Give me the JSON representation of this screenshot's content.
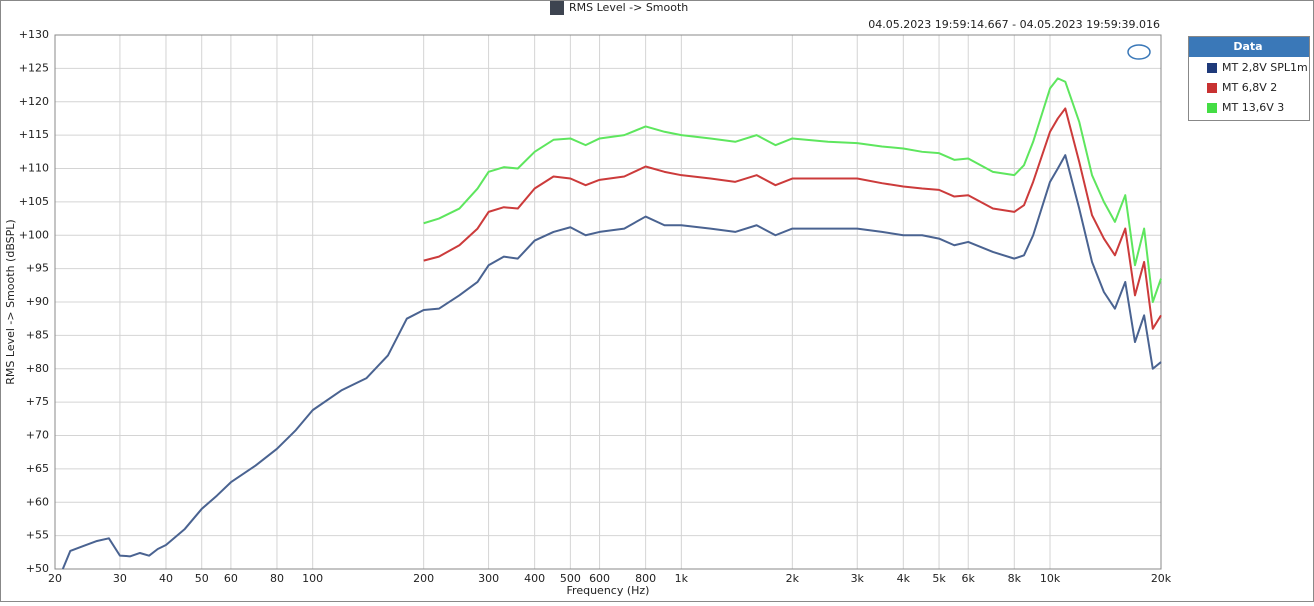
{
  "chart_data": {
    "type": "line",
    "title": "RMS Level -> Smooth",
    "subtitle": "04.05.2023 19:59:14.667 - 04.05.2023 19:59:39.016",
    "x_label": "Frequency (Hz)",
    "y_label": "RMS Level -> Smooth (dBSPL)",
    "legend_title": "Data",
    "legend_position": "outside-right",
    "x_scale": "log",
    "grid": true,
    "xlim": [
      20,
      20000
    ],
    "ylim": [
      50,
      130
    ],
    "xticks": [
      20,
      30,
      40,
      50,
      60,
      80,
      100,
      200,
      300,
      400,
      500,
      600,
      800,
      {
        "value": 1000,
        "label": "1k"
      },
      {
        "value": 2000,
        "label": "2k"
      },
      {
        "value": 3000,
        "label": "3k"
      },
      {
        "value": 4000,
        "label": "4k"
      },
      {
        "value": 5000,
        "label": "5k"
      },
      {
        "value": 6000,
        "label": "6k"
      },
      {
        "value": 8000,
        "label": "8k"
      },
      {
        "value": 10000,
        "label": "10k"
      },
      {
        "value": 20000,
        "label": "20k"
      }
    ],
    "yticks": [
      {
        "value": 50,
        "label": "+50"
      },
      {
        "value": 55,
        "label": "+55"
      },
      {
        "value": 60,
        "label": "+60"
      },
      {
        "value": 65,
        "label": "+65"
      },
      {
        "value": 70,
        "label": "+70"
      },
      {
        "value": 75,
        "label": "+75"
      },
      {
        "value": 80,
        "label": "+80"
      },
      {
        "value": 85,
        "label": "+85"
      },
      {
        "value": 90,
        "label": "+90"
      },
      {
        "value": 95,
        "label": "+95"
      },
      {
        "value": 100,
        "label": "+100"
      },
      {
        "value": 105,
        "label": "+105"
      },
      {
        "value": 110,
        "label": "+110"
      },
      {
        "value": 115,
        "label": "+115"
      },
      {
        "value": 120,
        "label": "+120"
      },
      {
        "value": 125,
        "label": "+125"
      },
      {
        "value": 130,
        "label": "+130"
      }
    ],
    "x": [
      21,
      22,
      24,
      26,
      28,
      30,
      32,
      34,
      36,
      38,
      40,
      45,
      50,
      55,
      60,
      70,
      80,
      90,
      100,
      120,
      140,
      160,
      180,
      200,
      220,
      250,
      280,
      300,
      330,
      360,
      400,
      450,
      500,
      550,
      600,
      700,
      800,
      900,
      1000,
      1200,
      1400,
      1600,
      1800,
      2000,
      2500,
      3000,
      3500,
      4000,
      4500,
      5000,
      5500,
      6000,
      7000,
      8000,
      8500,
      9000,
      10000,
      10500,
      11000,
      12000,
      13000,
      14000,
      15000,
      16000,
      17000,
      18000,
      19000,
      20000
    ],
    "series": [
      {
        "name": "MT 2,8V SPL1m",
        "color": "#4a6391",
        "legend_color": "#1f3a7a",
        "values": [
          50,
          52.7,
          53.5,
          54.2,
          54.6,
          52,
          51.9,
          52.4,
          52,
          53,
          53.6,
          56,
          59,
          61,
          63,
          65.5,
          68,
          70.8,
          73.8,
          76.8,
          78.6,
          82,
          87.5,
          88.8,
          89,
          91,
          93,
          95.5,
          96.8,
          96.5,
          99.2,
          100.5,
          101.2,
          100,
          100.5,
          101,
          102.8,
          101.5,
          101.5,
          101,
          100.5,
          101.5,
          100,
          101,
          101,
          101,
          100.5,
          100,
          100,
          99.5,
          98.5,
          99,
          97.5,
          96.5,
          97,
          100,
          108,
          110,
          112,
          104,
          96,
          91.5,
          89,
          93,
          84,
          88,
          80,
          81
        ]
      },
      {
        "name": "MT 6,8V 2",
        "color": "#cc3b3b",
        "legend_color": "#c83232",
        "values": [
          null,
          null,
          null,
          null,
          null,
          null,
          null,
          null,
          null,
          null,
          null,
          null,
          null,
          null,
          null,
          null,
          null,
          null,
          null,
          null,
          null,
          null,
          null,
          96.2,
          96.8,
          98.5,
          101,
          103.5,
          104.2,
          104,
          107,
          108.8,
          108.5,
          107.5,
          108.3,
          108.8,
          110.3,
          109.5,
          109,
          108.5,
          108,
          109,
          107.5,
          108.5,
          108.5,
          108.5,
          107.8,
          107.3,
          107,
          106.8,
          105.8,
          106,
          104,
          103.5,
          104.5,
          108,
          115.5,
          117.5,
          119,
          111,
          103,
          99.5,
          97,
          101,
          91,
          96,
          86,
          88
        ]
      },
      {
        "name": "MT 13,6V 3",
        "color": "#5ee65e",
        "legend_color": "#44dd44",
        "values": [
          null,
          null,
          null,
          null,
          null,
          null,
          null,
          null,
          null,
          null,
          null,
          null,
          null,
          null,
          null,
          null,
          null,
          null,
          null,
          null,
          null,
          null,
          null,
          101.8,
          102.5,
          104,
          107,
          109.5,
          110.2,
          110,
          112.5,
          114.3,
          114.5,
          113.5,
          114.5,
          115,
          116.3,
          115.5,
          115,
          114.5,
          114,
          115,
          113.5,
          114.5,
          114,
          113.8,
          113.3,
          113,
          112.5,
          112.3,
          111.3,
          111.5,
          109.5,
          109,
          110.5,
          114,
          122,
          123.5,
          123,
          117,
          109,
          105,
          102,
          106,
          95.5,
          101,
          90,
          93.5
        ]
      }
    ]
  }
}
